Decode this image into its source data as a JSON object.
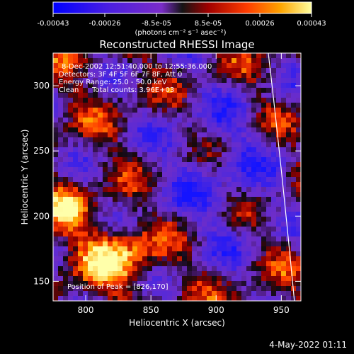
{
  "chart_data": {
    "type": "heatmap",
    "title": "Reconstructed RHESSI Image",
    "xlabel": "Heliocentric X (arcsec)",
    "ylabel": "Heliocentric Y (arcsec)",
    "xlim": [
      775,
      965
    ],
    "ylim": [
      135,
      325
    ],
    "xticks": [
      800,
      850,
      900,
      950
    ],
    "yticks": [
      150,
      200,
      250,
      300
    ],
    "colorbar": {
      "label": "(photons cm⁻² s⁻¹ asec⁻²)",
      "tick_labels": [
        "-0.00043",
        "-0.00026",
        "-8.5e-05",
        "8.5e-05",
        "0.00026",
        "0.00043"
      ],
      "range": [
        -0.00043,
        0.00043
      ]
    },
    "annotations": {
      "time_range": "8-Dec-2002 12:51:40.000 to 12:55:36.000",
      "detectors": "Detectors: 3F 4F 5F 6F 7F 8F, Att 0",
      "energy_range": "Energy Range: 25.0 - 50.0 keV",
      "algorithm": "Clean",
      "total_counts": "Total counts: 3.96E+03",
      "peak": "Position of Peak = [826,170]"
    },
    "peak_position": [
      826,
      170
    ],
    "limb_curve": {
      "x": [
        940,
        950,
        960
      ],
      "y": [
        325,
        240,
        135
      ]
    },
    "grid": false
  },
  "footer": {
    "timestamp": "4-May-2022 01:11"
  }
}
